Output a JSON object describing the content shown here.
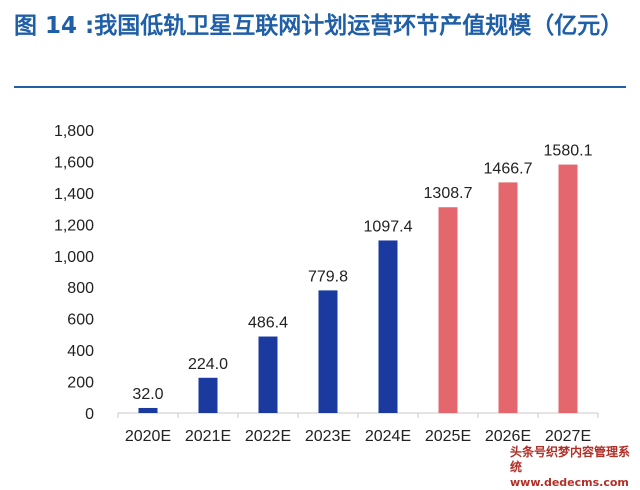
{
  "title": "图 14 :我国低轨卫星互联网计划运营环节产值规模（亿元）",
  "colors": {
    "title": "#1f5fa8",
    "actual": "#1a3aa0",
    "forecast": "#e3676c",
    "axis": "#c8c8c8",
    "text": "#222222"
  },
  "chart_data": {
    "type": "bar",
    "categories": [
      "2020E",
      "2021E",
      "2022E",
      "2023E",
      "2024E",
      "2025E",
      "2026E",
      "2027E"
    ],
    "values": [
      32.0,
      224.0,
      486.4,
      779.8,
      1097.4,
      1308.7,
      1466.7,
      1580.1
    ],
    "value_labels": [
      "32.0",
      "224.0",
      "486.4",
      "779.8",
      "1097.4",
      "1308.7",
      "1466.7",
      "1580.1"
    ],
    "bar_colors": [
      "#1a3aa0",
      "#1a3aa0",
      "#1a3aa0",
      "#1a3aa0",
      "#1a3aa0",
      "#e3676c",
      "#e3676c",
      "#e3676c"
    ],
    "ylim": [
      0,
      1800
    ],
    "yticks": [
      0,
      200,
      400,
      600,
      800,
      1000,
      1200,
      1400,
      1600,
      1800
    ],
    "ytick_labels": [
      "0",
      "200",
      "400",
      "600",
      "800",
      "1,000",
      "1,200",
      "1,400",
      "1,600",
      "1,800"
    ],
    "xlabel": "",
    "ylabel": "",
    "grid": false,
    "legend": "none"
  },
  "watermark": {
    "line1": "头条号织梦内容管理系统",
    "line2": "www.dedecms.com"
  }
}
